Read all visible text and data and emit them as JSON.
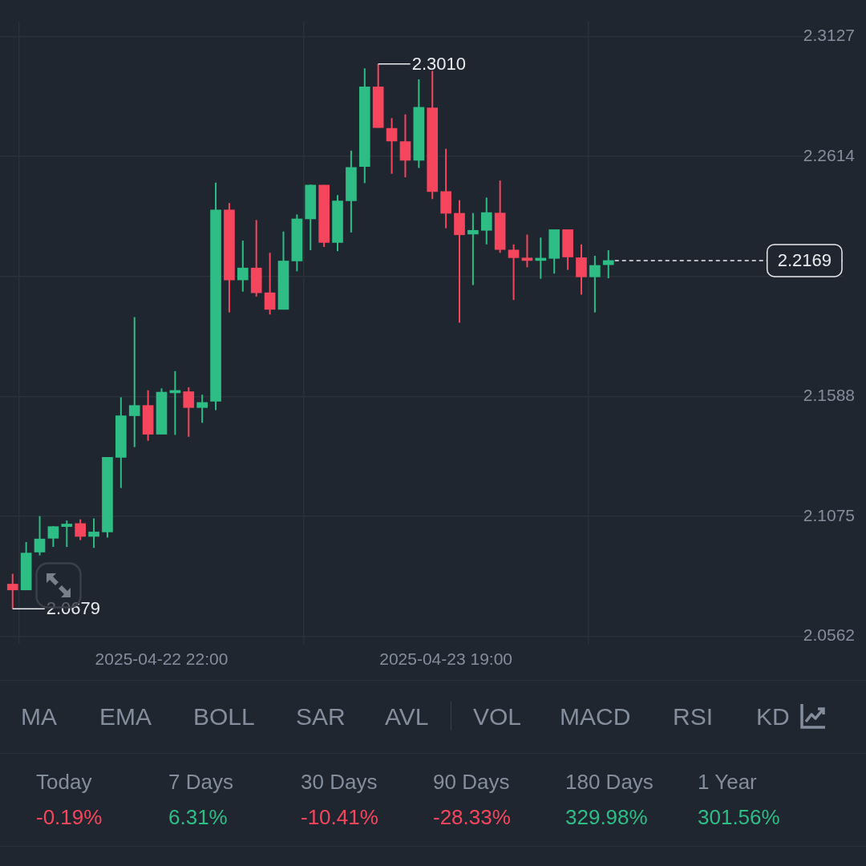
{
  "chart_data": {
    "type": "candlestick",
    "x": [
      "2025-04-22T11:00",
      "2025-04-22T12:00",
      "2025-04-22T13:00",
      "2025-04-22T14:00",
      "2025-04-22T15:00",
      "2025-04-22T16:00",
      "2025-04-22T17:00",
      "2025-04-22T18:00",
      "2025-04-22T19:00",
      "2025-04-22T20:00",
      "2025-04-22T21:00",
      "2025-04-22T22:00",
      "2025-04-22T23:00",
      "2025-04-23T00:00",
      "2025-04-23T01:00",
      "2025-04-23T02:00",
      "2025-04-23T03:00",
      "2025-04-23T04:00",
      "2025-04-23T05:00",
      "2025-04-23T06:00",
      "2025-04-23T07:00",
      "2025-04-23T08:00",
      "2025-04-23T09:00",
      "2025-04-23T10:00",
      "2025-04-23T11:00",
      "2025-04-23T12:00",
      "2025-04-23T13:00",
      "2025-04-23T14:00",
      "2025-04-23T15:00",
      "2025-04-23T16:00",
      "2025-04-23T17:00",
      "2025-04-23T18:00",
      "2025-04-23T19:00",
      "2025-04-23T20:00",
      "2025-04-23T21:00",
      "2025-04-23T22:00",
      "2025-04-23T23:00",
      "2025-04-24T00:00",
      "2025-04-24T01:00",
      "2025-04-24T02:00",
      "2025-04-24T03:00",
      "2025-04-24T04:00",
      "2025-04-24T05:00",
      "2025-04-24T06:00",
      "2025-04-24T07:00"
    ],
    "ohlc": [
      [
        2.0785,
        2.0829,
        2.0679,
        2.076
      ],
      [
        2.076,
        2.0965,
        2.076,
        2.0918
      ],
      [
        2.0922,
        2.1076,
        2.0908,
        2.0978
      ],
      [
        2.0981,
        2.1033,
        2.0944,
        2.1031
      ],
      [
        2.1031,
        2.1057,
        2.0944,
        2.1042
      ],
      [
        2.1044,
        2.1062,
        2.0973,
        2.0989
      ],
      [
        2.0989,
        2.1066,
        2.094,
        2.1008
      ],
      [
        2.1008,
        2.1327,
        2.0984,
        2.1327
      ],
      [
        2.1327,
        2.1584,
        2.1196,
        2.1505
      ],
      [
        2.1505,
        2.1927,
        2.1371,
        2.1549
      ],
      [
        2.1549,
        2.1614,
        2.1398,
        2.1426
      ],
      [
        2.1426,
        2.1622,
        2.1426,
        2.1606
      ],
      [
        2.1603,
        2.1696,
        2.1423,
        2.1609
      ],
      [
        2.1608,
        2.1627,
        2.1415,
        2.154
      ],
      [
        2.154,
        2.1595,
        2.1475,
        2.1562
      ],
      [
        2.1567,
        2.2502,
        2.1529,
        2.2385
      ],
      [
        2.2385,
        2.2415,
        2.1947,
        2.2086
      ],
      [
        2.2086,
        2.2254,
        2.2036,
        2.2137
      ],
      [
        2.2137,
        2.2342,
        2.2015,
        2.2031
      ],
      [
        2.2031,
        2.2202,
        2.1938,
        2.196
      ],
      [
        2.196,
        2.2293,
        2.1959,
        2.2167
      ],
      [
        2.2167,
        2.2366,
        2.2123,
        2.2347
      ],
      [
        2.2347,
        2.2494,
        2.2213,
        2.2492
      ],
      [
        2.2492,
        2.2492,
        2.2227,
        2.2246
      ],
      [
        2.2246,
        2.2449,
        2.2209,
        2.2424
      ],
      [
        2.2424,
        2.2639,
        2.2289,
        2.2567
      ],
      [
        2.2571,
        2.2991,
        2.25,
        2.2912
      ],
      [
        2.2912,
        2.301,
        2.2737,
        2.2737
      ],
      [
        2.2734,
        2.2778,
        2.254,
        2.268
      ],
      [
        2.2678,
        2.2794,
        2.2525,
        2.2598
      ],
      [
        2.2598,
        2.2944,
        2.2565,
        2.2824
      ],
      [
        2.2822,
        2.298,
        2.2432,
        2.2464
      ],
      [
        2.2464,
        2.2647,
        2.2307,
        2.2371
      ],
      [
        2.2371,
        2.2427,
        2.1903,
        2.2279
      ],
      [
        2.2282,
        2.2372,
        2.2064,
        2.2298
      ],
      [
        2.2298,
        2.2438,
        2.2238,
        2.2374
      ],
      [
        2.2372,
        2.2511,
        2.2202,
        2.2216
      ],
      [
        2.2214,
        2.2238,
        2.2,
        2.2181
      ],
      [
        2.218,
        2.228,
        2.214,
        2.2169
      ],
      [
        2.2169,
        2.2267,
        2.2091,
        2.2178
      ],
      [
        2.2178,
        2.2301,
        2.2113,
        2.2301
      ],
      [
        2.2301,
        2.2301,
        2.2129,
        2.2184
      ],
      [
        2.2181,
        2.2238,
        2.2023,
        2.2099
      ],
      [
        2.2099,
        2.2189,
        2.1947,
        2.2148
      ],
      [
        2.2151,
        2.2213,
        2.2093,
        2.2169
      ]
    ],
    "colors": [
      "#f6465d",
      "#2ebd85",
      "#2ebd85",
      "#2ebd85",
      "#2ebd85",
      "#f6465d",
      "#2ebd85",
      "#2ebd85",
      "#2ebd85",
      "#2ebd85",
      "#f6465d",
      "#2ebd85",
      "#2ebd85",
      "#f6465d",
      "#2ebd85",
      "#2ebd85",
      "#f6465d",
      "#2ebd85",
      "#f6465d",
      "#f6465d",
      "#2ebd85",
      "#2ebd85",
      "#2ebd85",
      "#f6465d",
      "#2ebd85",
      "#2ebd85",
      "#2ebd85",
      "#f6465d",
      "#f6465d",
      "#f6465d",
      "#2ebd85",
      "#f6465d",
      "#f6465d",
      "#f6465d",
      "#2ebd85",
      "#2ebd85",
      "#f6465d",
      "#f6465d",
      "#f6465d",
      "#2ebd85",
      "#2ebd85",
      "#f6465d",
      "#f6465d",
      "#2ebd85",
      "#2ebd85"
    ],
    "xlim": [
      "2025-04-22T10:04",
      "2025-04-25T00:22"
    ],
    "xticks": [
      {
        "value": "2025-04-22T22:00",
        "label": "2025-04-22 22:00"
      },
      {
        "value": "2025-04-23T19:00",
        "label": "2025-04-23 19:00"
      }
    ],
    "ylim": [
      2.053,
      2.3192
    ],
    "yticks": [
      2.0562,
      2.1075,
      2.1588,
      {
        "value": 2.2101,
        "label": null
      },
      2.2614,
      2.3127
    ],
    "grid": true,
    "ref_lines": [
      {
        "axis": "y",
        "value": 2.2169,
        "label": "2.2169",
        "line_style": "dashed"
      }
    ],
    "annotations": [
      {
        "text": "2.3010",
        "x": "2025-04-23T14:00",
        "y": 2.301
      },
      {
        "text": "2.0679",
        "x": "2025-04-22T11:00",
        "y": 2.0679
      },
      "MA",
      "EMA",
      "BOLL",
      "SAR",
      "AVL",
      "VOL",
      "MACD",
      "RSI",
      "KD",
      "Today",
      "-0.19%",
      "7 Days",
      "6.31%",
      "30 Days",
      "-10.41%",
      "90 Days",
      "-28.33%",
      "180 Days",
      "329.98%",
      "1 Year",
      "301.56%"
    ]
  }
}
